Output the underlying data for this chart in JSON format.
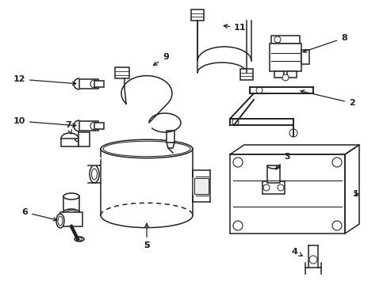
{
  "bg_color": "#ffffff",
  "line_color": "#222222",
  "lw": 1.1,
  "fig_w": 4.89,
  "fig_h": 3.6,
  "dpi": 100
}
